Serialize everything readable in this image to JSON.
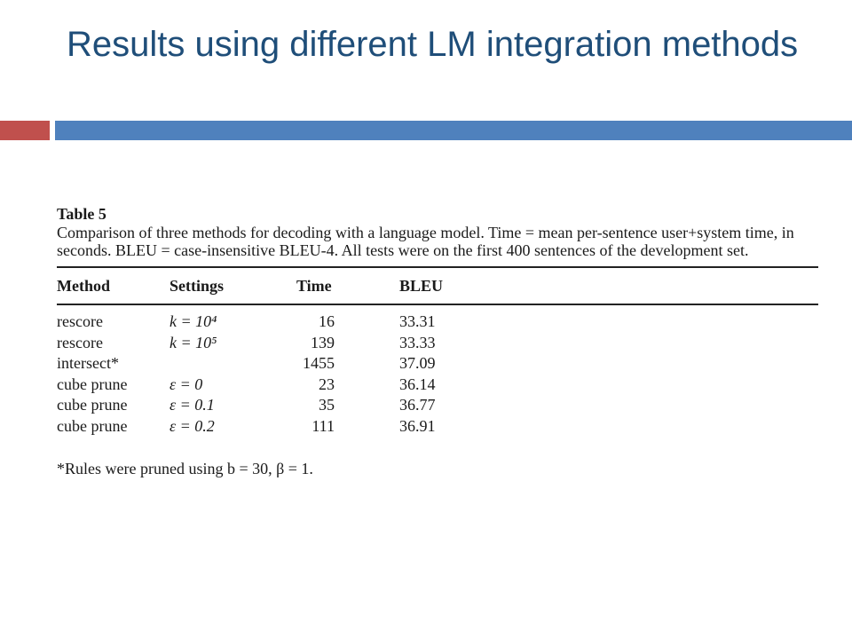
{
  "slide": {
    "title": "Results using different LM integration methods"
  },
  "table": {
    "label": "Table 5",
    "caption": "Comparison of three methods for decoding with a language model. Time = mean per-sentence user+system time, in seconds. BLEU = case-insensitive BLEU-4. All tests were on the first 400 sentences of the development set.",
    "headers": {
      "method": "Method",
      "settings": "Settings",
      "time": "Time",
      "bleu": "BLEU"
    },
    "rows": [
      {
        "method": "rescore",
        "settings": "k = 10⁴",
        "time": "16",
        "bleu": "33.31"
      },
      {
        "method": "rescore",
        "settings": "k = 10⁵",
        "time": "139",
        "bleu": "33.33"
      },
      {
        "method": "intersect*",
        "settings": "",
        "time": "1455",
        "bleu": "37.09"
      },
      {
        "method": "cube prune",
        "settings": "ε = 0",
        "time": "23",
        "bleu": "36.14"
      },
      {
        "method": "cube prune",
        "settings": "ε = 0.1",
        "time": "35",
        "bleu": "36.77"
      },
      {
        "method": "cube prune",
        "settings": "ε = 0.2",
        "time": "111",
        "bleu": "36.91"
      }
    ],
    "footnote": "*Rules were pruned using b = 30, β = 1."
  },
  "colors": {
    "title": "#1f4e79",
    "accent_red": "#c0504d",
    "accent_blue": "#4f81bd"
  }
}
